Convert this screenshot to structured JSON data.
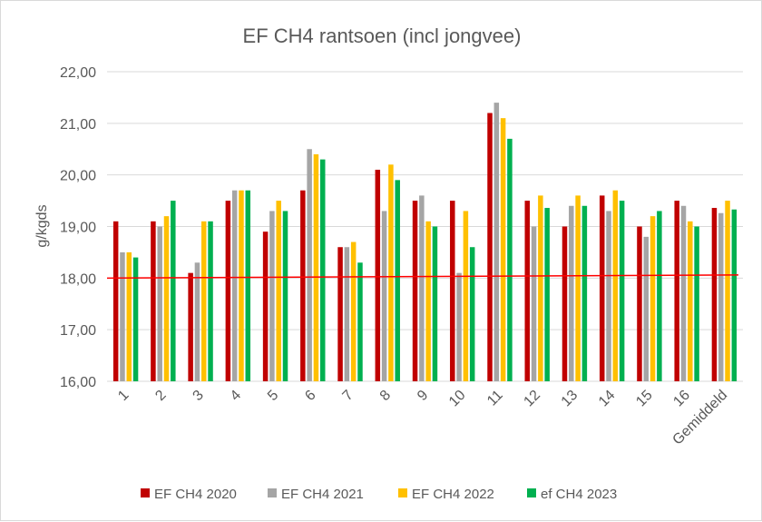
{
  "chart_data": {
    "type": "bar",
    "title": "EF CH4 rantsoen (incl jongvee)",
    "xlabel": "",
    "ylabel": "g/kgds",
    "ylim": [
      16,
      22
    ],
    "yticks": [
      "16,00",
      "17,00",
      "18,00",
      "19,00",
      "20,00",
      "21,00",
      "22,00"
    ],
    "grid": true,
    "legend_position": "bottom",
    "categories": [
      "1",
      "2",
      "3",
      "4",
      "5",
      "6",
      "7",
      "8",
      "9",
      "10",
      "11",
      "12",
      "13",
      "14",
      "15",
      "16",
      "Gemiddeld"
    ],
    "series": [
      {
        "name": "EF CH4 2020",
        "color": "#C00000",
        "values": [
          19.1,
          19.1,
          18.1,
          19.5,
          18.9,
          19.7,
          18.6,
          20.1,
          19.5,
          19.5,
          21.2,
          19.5,
          19.0,
          19.6,
          19.0,
          19.5,
          19.36
        ]
      },
      {
        "name": "EF CH4 2021",
        "color": "#A5A5A5",
        "values": [
          18.5,
          19.0,
          18.3,
          19.7,
          19.3,
          20.5,
          18.6,
          19.3,
          19.6,
          18.1,
          21.4,
          19.0,
          19.4,
          19.3,
          18.8,
          19.4,
          19.26
        ]
      },
      {
        "name": "EF CH4 2022",
        "color": "#FFC000",
        "values": [
          18.5,
          19.2,
          19.1,
          19.7,
          19.5,
          20.4,
          18.7,
          20.2,
          19.1,
          19.3,
          21.1,
          19.6,
          19.6,
          19.7,
          19.2,
          19.1,
          19.5
        ]
      },
      {
        "name": "ef CH4 2023",
        "color": "#00B050",
        "values": [
          18.4,
          19.5,
          19.1,
          19.7,
          19.3,
          20.3,
          18.3,
          19.9,
          19.0,
          18.6,
          20.7,
          19.36,
          19.4,
          19.5,
          19.3,
          19.0,
          19.33
        ]
      }
    ],
    "trendline": {
      "color": "#FF0000",
      "start": 18.0,
      "end": 18.06
    }
  }
}
